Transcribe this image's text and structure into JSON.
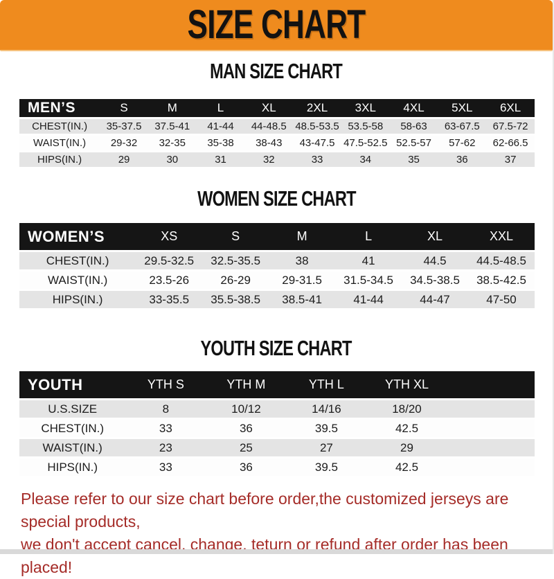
{
  "colors": {
    "banner_bg": "#ef8b1e",
    "header_bar": "#151515",
    "row_alt": "#e4e4e4",
    "footer_red": "#a52c28"
  },
  "banner": {
    "title": "SIZE CHART"
  },
  "sections": [
    {
      "title": "MAN SIZE CHART",
      "header_label": "MEN’S",
      "sizes": [
        "S",
        "M",
        "L",
        "XL",
        "2XL",
        "3XL",
        "4XL",
        "5XL",
        "6XL"
      ],
      "rows": [
        {
          "label": "CHEST(IN.)",
          "values": [
            "35-37.5",
            "37.5-41",
            "41-44",
            "44-48.5",
            "48.5-53.5",
            "53.5-58",
            "58-63",
            "63-67.5",
            "67.5-72"
          ]
        },
        {
          "label": "WAIST(IN.)",
          "values": [
            "29-32",
            "32-35",
            "35-38",
            "38-43",
            "43-47.5",
            "47.5-52.5",
            "52.5-57",
            "57-62",
            "62-66.5"
          ]
        },
        {
          "label": "HIPS(IN.)",
          "values": [
            "29",
            "30",
            "31",
            "32",
            "33",
            "34",
            "35",
            "36",
            "37"
          ]
        }
      ]
    },
    {
      "title": "WOMEN SIZE CHART",
      "header_label": "WOMEN’S",
      "sizes": [
        "XS",
        "S",
        "M",
        "L",
        "XL",
        "XXL"
      ],
      "rows": [
        {
          "label": "CHEST(IN.)",
          "values": [
            "29.5-32.5",
            "32.5-35.5",
            "38",
            "41",
            "44.5",
            "44.5-48.5"
          ]
        },
        {
          "label": "WAIST(IN.)",
          "values": [
            "23.5-26",
            "26-29",
            "29-31.5",
            "31.5-34.5",
            "34.5-38.5",
            "38.5-42.5"
          ]
        },
        {
          "label": "HIPS(IN.)",
          "values": [
            "33-35.5",
            "35.5-38.5",
            "38.5-41",
            "41-44",
            "44-47",
            "47-50"
          ]
        }
      ]
    },
    {
      "title": "YOUTH SIZE CHART",
      "header_label": "YOUTH",
      "sizes": [
        "YTH S",
        "YTH M",
        "YTH L",
        "YTH XL"
      ],
      "rows": [
        {
          "label": "U.S.SIZE",
          "values": [
            "8",
            "10/12",
            "14/16",
            "18/20"
          ]
        },
        {
          "label": "CHEST(IN.)",
          "values": [
            "33",
            "36",
            "39.5",
            "42.5"
          ]
        },
        {
          "label": "WAIST(IN.)",
          "values": [
            "23",
            "25",
            "27",
            "29"
          ]
        },
        {
          "label": "HIPS(IN.)",
          "values": [
            "33",
            "36",
            "39.5",
            "42.5"
          ]
        }
      ]
    }
  ],
  "footer": {
    "lines": [
      "Please refer to our size chart before order,the customized jerseys are special products,",
      "we don't accept cancel, change, teturn or refund after order has been placed!"
    ]
  }
}
